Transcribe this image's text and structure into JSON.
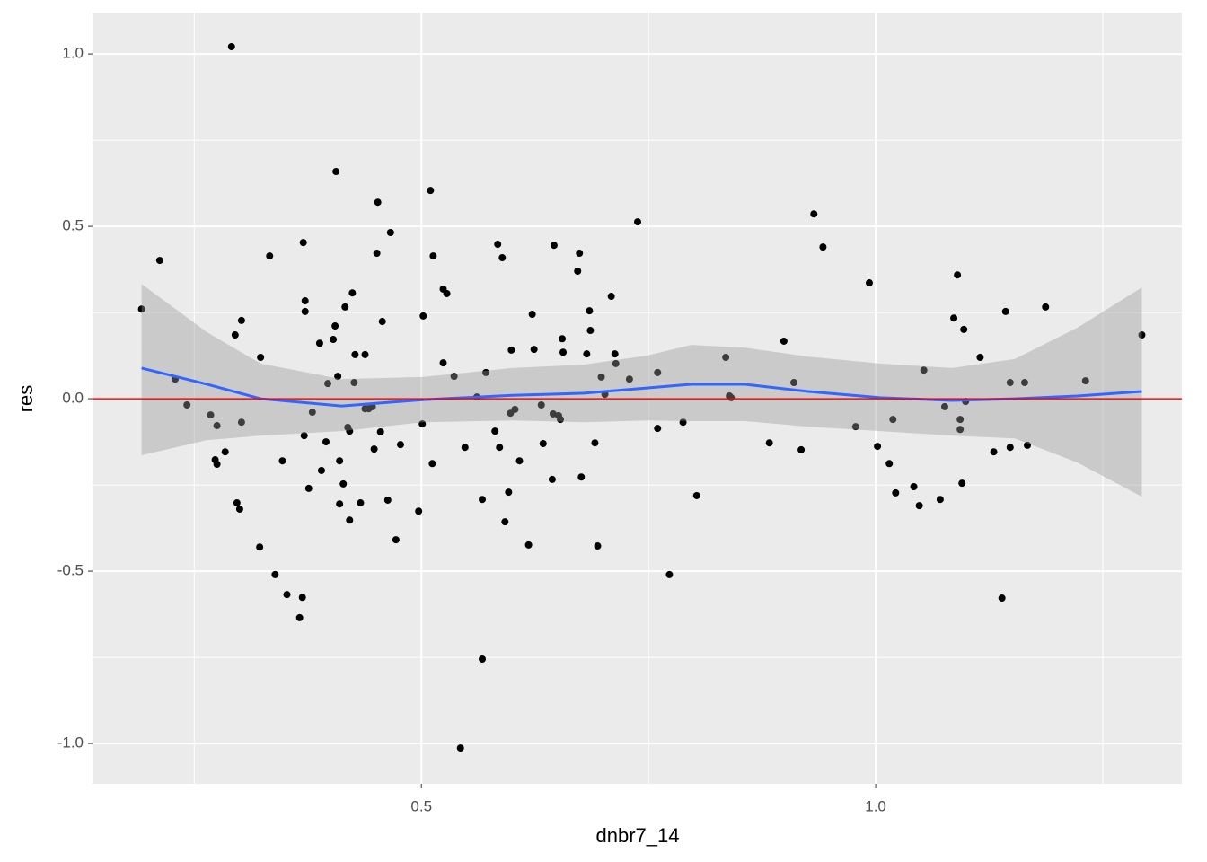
{
  "chart_data": {
    "type": "scatter",
    "x_label": "dnbr7_14",
    "y_label": "res",
    "xlim": [
      0.138,
      1.337
    ],
    "ylim": [
      -1.117,
      1.12
    ],
    "xticks": [
      {
        "value": 0.5,
        "label": "0.5"
      },
      {
        "value": 1.0,
        "label": "1.0"
      }
    ],
    "yticks": [
      {
        "value": -1.0,
        "label": "-1.0"
      },
      -0.5,
      {
        "value": 0.0,
        "label": "0.0"
      },
      0.5,
      {
        "value": 1.0,
        "label": "1.0"
      }
    ],
    "x_minor_grid": [
      0.25,
      0.75,
      1.25
    ],
    "y_minor_grid": [
      -0.75,
      -0.25,
      0.25,
      0.75
    ],
    "grid": true,
    "panel_color": "#ebebeb",
    "hline": 0,
    "hline_color": "#ff0000",
    "point_color": "#000000",
    "x": [
      0.192,
      0.212,
      0.229,
      0.242,
      0.268,
      0.273,
      0.275,
      0.275,
      0.284,
      0.291,
      0.295,
      0.297,
      0.3,
      0.302,
      0.302,
      0.322,
      0.323,
      0.333,
      0.339,
      0.347,
      0.352,
      0.366,
      0.369,
      0.37,
      0.371,
      0.372,
      0.372,
      0.376,
      0.38,
      0.388,
      0.39,
      0.395,
      0.397,
      0.403,
      0.405,
      0.406,
      0.408,
      0.41,
      0.41,
      0.414,
      0.416,
      0.419,
      0.421,
      0.421,
      0.424,
      0.426,
      0.427,
      0.433,
      0.438,
      0.438,
      0.442,
      0.446,
      0.448,
      0.451,
      0.452,
      0.455,
      0.457,
      0.463,
      0.466,
      0.472,
      0.477,
      0.497,
      0.501,
      0.502,
      0.51,
      0.512,
      0.513,
      0.524,
      0.524,
      0.528,
      0.536,
      0.543,
      0.548,
      0.561,
      0.567,
      0.567,
      0.571,
      0.581,
      0.584,
      0.586,
      0.589,
      0.592,
      0.596,
      0.598,
      0.599,
      0.603,
      0.608,
      0.618,
      0.622,
      0.624,
      0.632,
      0.634,
      0.644,
      0.645,
      0.646,
      0.651,
      0.653,
      0.655,
      0.656,
      0.672,
      0.674,
      0.676,
      0.682,
      0.685,
      0.686,
      0.691,
      0.694,
      0.698,
      0.702,
      0.709,
      0.713,
      0.714,
      0.729,
      0.738,
      0.76,
      0.76,
      0.773,
      0.788,
      0.803,
      0.835,
      0.839,
      0.841,
      0.883,
      0.899,
      0.91,
      0.918,
      0.932,
      0.942,
      0.978,
      0.993,
      1.002,
      1.015,
      1.019,
      1.022,
      1.042,
      1.048,
      1.053,
      1.071,
      1.076,
      1.086,
      1.09,
      1.093,
      1.093,
      1.095,
      1.097,
      1.099,
      1.115,
      1.13,
      1.139,
      1.143,
      1.148,
      1.148,
      1.164,
      1.167,
      1.187,
      1.231,
      1.293
    ],
    "values": [
      0.26,
      0.401,
      0.057,
      -0.018,
      -0.047,
      -0.177,
      -0.19,
      -0.078,
      -0.154,
      1.021,
      0.185,
      -0.302,
      -0.32,
      0.227,
      -0.068,
      -0.43,
      0.12,
      0.414,
      -0.51,
      -0.18,
      -0.568,
      -0.635,
      -0.576,
      0.453,
      -0.107,
      0.284,
      0.253,
      -0.26,
      -0.039,
      0.161,
      -0.208,
      -0.125,
      0.044,
      0.172,
      0.211,
      0.659,
      0.065,
      -0.18,
      -0.305,
      -0.247,
      0.266,
      -0.083,
      -0.094,
      -0.352,
      0.307,
      0.047,
      0.128,
      -0.302,
      0.128,
      -0.029,
      -0.029,
      -0.023,
      -0.146,
      0.422,
      0.57,
      -0.096,
      0.224,
      -0.294,
      0.482,
      -0.409,
      -0.133,
      -0.326,
      -0.073,
      0.24,
      0.604,
      -0.188,
      0.414,
      0.104,
      0.318,
      0.305,
      0.065,
      -1.013,
      -0.141,
      0.005,
      -0.292,
      -0.755,
      0.076,
      -0.094,
      0.448,
      -0.141,
      0.409,
      -0.357,
      -0.271,
      -0.042,
      0.141,
      -0.031,
      -0.18,
      -0.424,
      0.245,
      0.143,
      -0.018,
      -0.13,
      -0.234,
      -0.044,
      0.445,
      -0.049,
      -0.06,
      0.174,
      0.135,
      0.37,
      0.422,
      -0.227,
      0.13,
      0.255,
      0.198,
      -0.128,
      -0.427,
      0.063,
      0.013,
      0.297,
      0.13,
      0.102,
      0.057,
      0.513,
      -0.086,
      0.076,
      -0.51,
      -0.068,
      -0.281,
      0.12,
      0.008,
      0.003,
      -0.128,
      0.167,
      0.047,
      -0.148,
      0.536,
      0.44,
      -0.081,
      0.336,
      -0.138,
      -0.188,
      -0.06,
      -0.273,
      -0.255,
      -0.31,
      0.083,
      -0.292,
      -0.023,
      0.234,
      0.359,
      -0.06,
      -0.089,
      -0.245,
      0.201,
      -0.008,
      0.12,
      -0.154,
      -0.578,
      0.253,
      0.047,
      -0.141,
      0.047,
      -0.135,
      0.266,
      0.052,
      0.185
    ],
    "smooth": {
      "color": "#3366ff",
      "band_color": "#999999",
      "x": [
        0.192,
        0.264,
        0.323,
        0.412,
        0.501,
        0.6,
        0.679,
        0.748,
        0.797,
        0.856,
        0.926,
        1.005,
        1.084,
        1.153,
        1.222,
        1.293
      ],
      "values": [
        0.089,
        0.042,
        0.0,
        -0.021,
        -0.003,
        0.01,
        0.016,
        0.031,
        0.042,
        0.042,
        0.021,
        0.003,
        -0.005,
        0.0,
        0.008,
        0.021
      ],
      "upper": [
        0.333,
        0.193,
        0.102,
        0.057,
        0.063,
        0.089,
        0.099,
        0.125,
        0.156,
        0.148,
        0.122,
        0.102,
        0.089,
        0.115,
        0.206,
        0.323
      ],
      "lower": [
        -0.164,
        -0.12,
        -0.107,
        -0.094,
        -0.068,
        -0.063,
        -0.068,
        -0.063,
        -0.065,
        -0.065,
        -0.081,
        -0.094,
        -0.107,
        -0.115,
        -0.185,
        -0.284
      ]
    }
  }
}
